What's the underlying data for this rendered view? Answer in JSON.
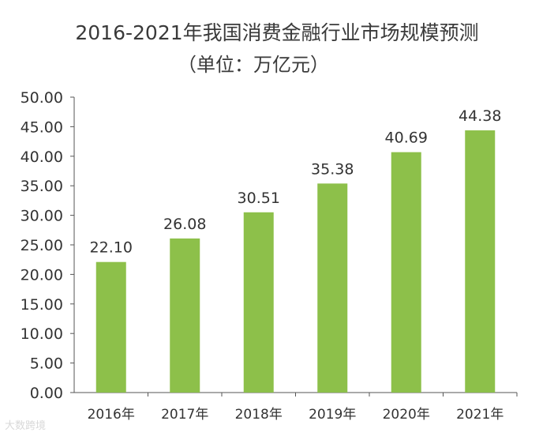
{
  "chart_data": {
    "type": "bar",
    "title": "2016-2021年我国消费金融行业市场规模预测",
    "subtitle": "（单位：万亿元）",
    "categories": [
      "2016年",
      "2017年",
      "2018年",
      "2019年",
      "2020年",
      "2021年"
    ],
    "values": [
      22.1,
      26.08,
      30.51,
      35.38,
      40.69,
      44.38
    ],
    "data_labels": [
      "22.10",
      "26.08",
      "30.51",
      "35.38",
      "40.69",
      "44.38"
    ],
    "ylim": [
      0,
      50
    ],
    "y_ticks": [
      "0.00",
      "5.00",
      "10.00",
      "15.00",
      "20.00",
      "25.00",
      "30.00",
      "35.00",
      "40.00",
      "45.00",
      "50.00"
    ],
    "xlabel": "",
    "ylabel": "",
    "grid": false,
    "legend": "none",
    "bar_color": "#8dc04a"
  },
  "watermark": "大数跨境"
}
